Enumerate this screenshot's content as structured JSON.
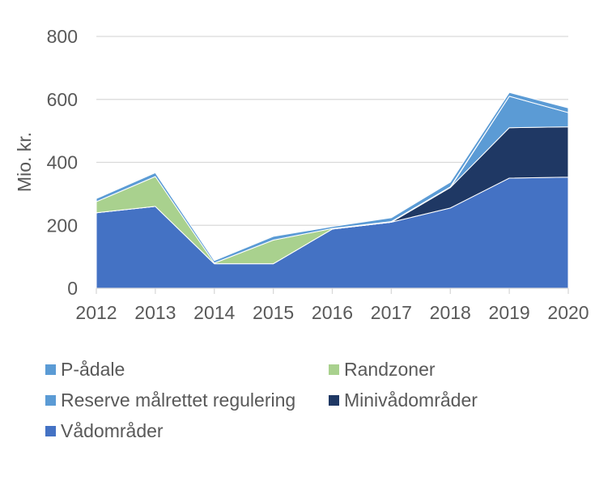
{
  "chart_data": {
    "type": "area",
    "stacked": true,
    "title": "",
    "xlabel": "",
    "ylabel": "Mio. kr.",
    "x": [
      "2012",
      "2013",
      "2014",
      "2015",
      "2016",
      "2017",
      "2018",
      "2019",
      "2020"
    ],
    "ylim": [
      0,
      800
    ],
    "yticks": [
      "0",
      "200",
      "400",
      "600",
      "800"
    ],
    "grid": true,
    "legend_position": "bottom",
    "series": [
      {
        "name": "Vådområder",
        "color": "#4472C4",
        "values": [
          240,
          260,
          78,
          78,
          188,
          210,
          255,
          350,
          353
        ]
      },
      {
        "name": "Minivådområder",
        "color": "#1F3864",
        "values": [
          0,
          0,
          0,
          0,
          0,
          0,
          65,
          160,
          160
        ]
      },
      {
        "name": "Reserve målrettet regulering",
        "color": "#5B9BD5",
        "values": [
          0,
          0,
          0,
          0,
          0,
          0,
          0,
          100,
          45
        ]
      },
      {
        "name": "Randzoner",
        "color": "#A9D18E",
        "values": [
          35,
          95,
          2,
          75,
          2,
          2,
          2,
          0,
          0
        ]
      },
      {
        "name": "P-ådale",
        "color": "#5B9BD5",
        "values": [
          10,
          12,
          8,
          12,
          6,
          12,
          15,
          12,
          15
        ]
      }
    ],
    "legend_order": [
      4,
      3,
      2,
      1,
      0
    ]
  }
}
